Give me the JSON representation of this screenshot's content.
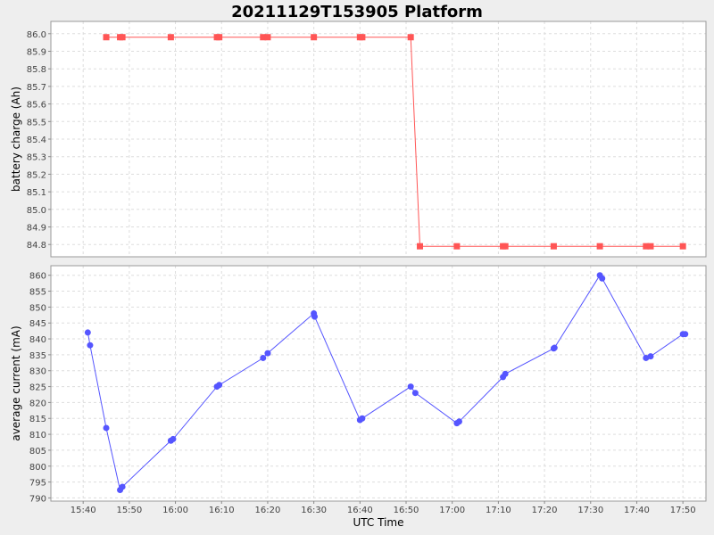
{
  "chart_data": {
    "type": "line",
    "title": "20211129T153905 Platform",
    "xlabel": "UTC Time",
    "x_ticks": [
      "15:40",
      "15:50",
      "16:00",
      "16:10",
      "16:20",
      "16:30",
      "16:40",
      "16:50",
      "17:00",
      "17:10",
      "17:20",
      "17:30",
      "17:40",
      "17:50"
    ],
    "xlim": [
      "15:33",
      "17:55"
    ],
    "grid": true,
    "legend": "none",
    "subplots": [
      {
        "ylabel": "battery charge (Ah)",
        "ylim": [
          84.73,
          86.07
        ],
        "yticks": [
          84.8,
          84.9,
          85.0,
          85.1,
          85.2,
          85.3,
          85.4,
          85.5,
          85.6,
          85.7,
          85.8,
          85.9,
          86.0
        ],
        "color": "#ff5555",
        "marker": "square",
        "series": [
          {
            "x": [
              "15:45",
              "15:48",
              "15:48:30",
              "15:59",
              "16:09",
              "16:09:30",
              "16:19",
              "16:20",
              "16:30",
              "16:40",
              "16:40:30",
              "16:51",
              "16:53",
              "17:01",
              "17:11",
              "17:11:30",
              "17:22",
              "17:32",
              "17:42",
              "17:43",
              "17:50"
            ],
            "values": [
              85.98,
              85.98,
              85.98,
              85.98,
              85.98,
              85.98,
              85.98,
              85.98,
              85.98,
              85.98,
              85.98,
              85.98,
              84.79,
              84.79,
              84.79,
              84.79,
              84.79,
              84.79,
              84.79,
              84.79,
              84.79
            ]
          }
        ]
      },
      {
        "ylabel": "average current (mA)",
        "ylim": [
          789,
          863
        ],
        "yticks": [
          790,
          795,
          800,
          805,
          810,
          815,
          820,
          825,
          830,
          835,
          840,
          845,
          850,
          855,
          860
        ],
        "color": "#5555ff",
        "marker": "circle",
        "series": [
          {
            "x": [
              "15:41",
              "15:41:30",
              "15:45",
              "15:48",
              "15:48:30",
              "15:59",
              "15:59:30",
              "16:09",
              "16:09:30",
              "16:19",
              "16:20",
              "16:30",
              "16:30:10",
              "16:40",
              "16:40:30",
              "16:51",
              "16:52",
              "17:01",
              "17:01:30",
              "17:11",
              "17:11:30",
              "17:22",
              "17:22:10",
              "17:32",
              "17:32:30",
              "17:42",
              "17:43",
              "17:50",
              "17:50:30"
            ],
            "values": [
              842,
              838,
              812,
              792.5,
              793.5,
              808,
              808.5,
              825,
              825.5,
              834,
              835.5,
              848,
              847,
              814.5,
              815,
              825,
              823,
              813.5,
              814,
              828,
              829,
              837,
              837.2,
              860,
              859,
              834,
              834.5,
              841.5,
              841.5
            ]
          }
        ]
      }
    ]
  }
}
